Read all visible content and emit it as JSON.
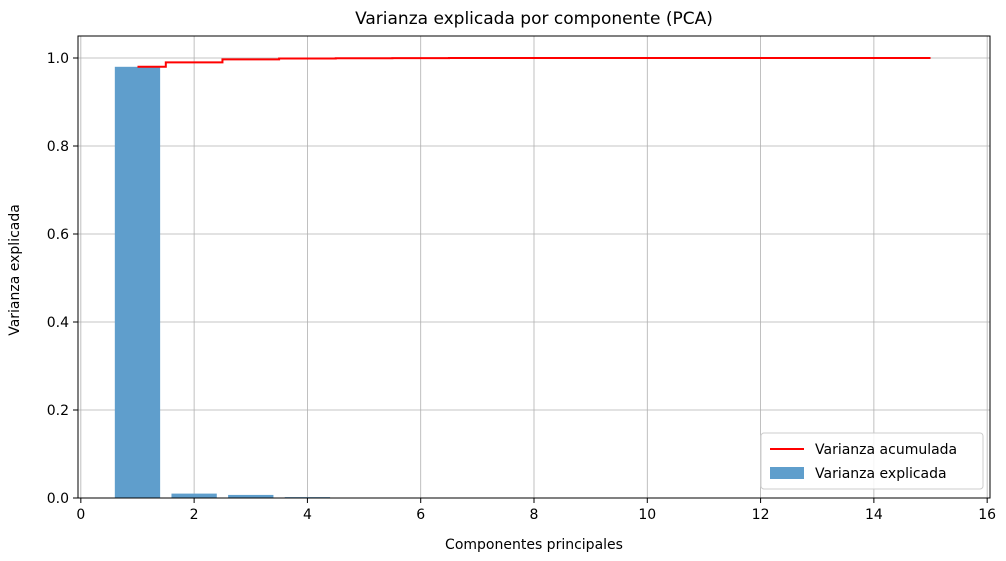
{
  "chart_data": {
    "type": "bar",
    "title": "Varianza explicada por componente (PCA)",
    "xlabel": "Componentes principales",
    "ylabel": "Varianza explicada",
    "xlim": [
      -0.05,
      16.05
    ],
    "ylim": [
      0,
      1.05
    ],
    "xticks": [
      0,
      2,
      4,
      6,
      8,
      10,
      12,
      14,
      16
    ],
    "xtick_labels": [
      "0",
      "2",
      "4",
      "6",
      "8",
      "10",
      "12",
      "14",
      "16"
    ],
    "yticks": [
      0.0,
      0.2,
      0.4,
      0.6,
      0.8,
      1.0
    ],
    "ytick_labels": [
      "0.0",
      "0.2",
      "0.4",
      "0.6",
      "0.8",
      "1.0"
    ],
    "grid": true,
    "legend_position": "lower-right",
    "bar_width": 0.8,
    "series": [
      {
        "name": "Varianza explicada",
        "kind": "bar",
        "color": "#5f9ecc",
        "x": [
          1,
          2,
          3,
          4,
          5,
          6,
          7,
          8,
          9,
          10,
          11,
          12,
          13,
          14,
          15
        ],
        "values": [
          0.98,
          0.01,
          0.007,
          0.002,
          0.0005,
          0.0003,
          0.0002,
          0.0001,
          0.0001,
          0.0001,
          5e-05,
          5e-05,
          5e-05,
          5e-05,
          5e-05
        ]
      },
      {
        "name": "Varianza acumulada",
        "kind": "step",
        "color": "#ff0000",
        "x": [
          1,
          2,
          3,
          4,
          5,
          6,
          7,
          8,
          9,
          10,
          11,
          12,
          13,
          14,
          15
        ],
        "values": [
          0.98,
          0.99,
          0.997,
          0.999,
          0.9995,
          0.9998,
          0.9999,
          0.9999,
          1.0,
          1.0,
          1.0,
          1.0,
          1.0,
          1.0,
          1.0
        ]
      }
    ]
  }
}
